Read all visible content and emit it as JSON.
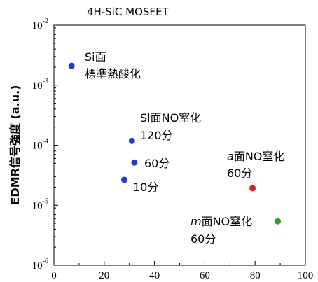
{
  "chart_data": {
    "type": "scatter",
    "title": "4H-SiC MOSFET",
    "xlabel": "",
    "ylabel": "EDMR信号強度 (a.u.)",
    "xlim": [
      0,
      100
    ],
    "ylim": [
      1e-06,
      0.01
    ],
    "yscale": "log",
    "grid": false,
    "xticks": [
      "0",
      "20",
      "40",
      "60",
      "80",
      "100"
    ],
    "yticks": [
      {
        "base": "10",
        "exp": "-6"
      },
      {
        "base": "10",
        "exp": "-5"
      },
      {
        "base": "10",
        "exp": "-4"
      },
      {
        "base": "10",
        "exp": "-3"
      },
      {
        "base": "10",
        "exp": "-2"
      }
    ],
    "points": [
      {
        "x": 7,
        "y": 0.0021,
        "color": "#1f3bd6"
      },
      {
        "x": 31,
        "y": 0.000118,
        "color": "#1f3bd6"
      },
      {
        "x": 32,
        "y": 5.15e-05,
        "color": "#1f3bd6"
      },
      {
        "x": 28,
        "y": 2.65e-05,
        "color": "#1f3bd6"
      },
      {
        "x": 79,
        "y": 1.92e-05,
        "color": "#e31a1c"
      },
      {
        "x": 89,
        "y": 5.4e-06,
        "color": "#2a9a2a"
      }
    ],
    "annotations": [
      {
        "lines": [
          "Si面",
          "標準熱酸化"
        ]
      },
      {
        "lines": [
          "Si面NO窒化",
          "120分"
        ]
      },
      {
        "lines": [
          "60分"
        ]
      },
      {
        "lines": [
          "10分"
        ]
      },
      {
        "lines": [
          "a面NO窒化",
          "60分"
        ],
        "italic_prefix": "a"
      },
      {
        "lines": [
          "m面NO窒化",
          "60分"
        ],
        "italic_prefix": "m"
      }
    ]
  }
}
